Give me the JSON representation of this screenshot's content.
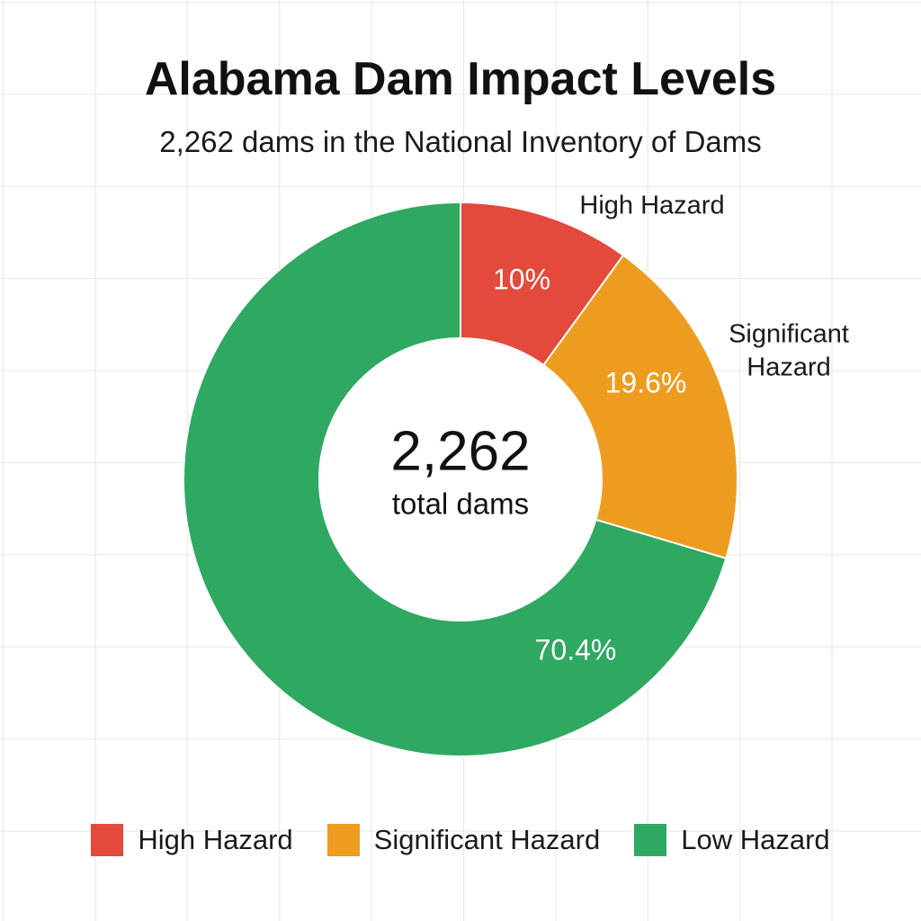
{
  "chart_data": {
    "type": "pie",
    "donut": true,
    "title": "Alabama Dam Impact Levels",
    "subtitle": "2,262 dams in the National Inventory of Dams",
    "center_value": "2,262",
    "center_label": "total dams",
    "slices": [
      {
        "label": "High Hazard",
        "callout": [
          "High Hazard"
        ],
        "value": 10,
        "value_label": "10%",
        "color": "#e34a3b"
      },
      {
        "label": "Significant Hazard",
        "callout": [
          "Significant",
          "Hazard"
        ],
        "value": 19.6,
        "value_label": "19.6%",
        "color": "#ee9c1f"
      },
      {
        "label": "Low Hazard",
        "callout": [],
        "value": 70.4,
        "value_label": "70.4%",
        "color": "#2fa862"
      }
    ],
    "legend": {
      "position": "bottom",
      "items": [
        "High Hazard",
        "Significant Hazard",
        "Low Hazard"
      ]
    },
    "grid": true
  }
}
